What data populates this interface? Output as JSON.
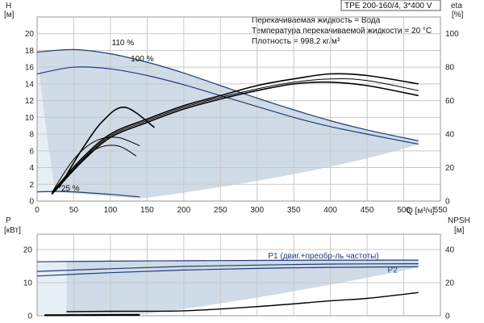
{
  "title_box": "TPE 200-160/4, 3*400 V",
  "info_lines": [
    "Перекачиваемая жидкость = Вода",
    "Температура перекачиваемой жидкости = 20 °C",
    "Плотность = 998.2 кг/м³"
  ],
  "colors": {
    "band_light": "#cfdbe6",
    "band_pale": "#e6eef6",
    "curve_blue": "#1f3d7a",
    "curve_black": "#000000",
    "grid": "#c9c9c9"
  },
  "chart_data": [
    {
      "type": "line",
      "xlabel": "Q [м³/ч]",
      "ylabel_left": "H",
      "ylabel_left_unit": "[м]",
      "ylabel_right": "eta",
      "ylabel_right_unit": "[%]",
      "xlim": [
        0,
        550
      ],
      "xticks": [
        0,
        50,
        100,
        150,
        200,
        250,
        300,
        350,
        400,
        450,
        500,
        550
      ],
      "ylim": [
        0,
        22
      ],
      "yticks": [
        0,
        2,
        4,
        6,
        8,
        10,
        12,
        14,
        16,
        18,
        20
      ],
      "ylim_right": [
        0,
        110
      ],
      "yticks_right": [
        0,
        20,
        40,
        60,
        80,
        100
      ],
      "grid": true,
      "series": [
        {
          "name": "110 %",
          "axis": "left",
          "color": "#1f3d7a",
          "x": [
            0,
            50,
            100,
            150,
            200,
            250,
            300,
            350,
            400,
            450,
            520
          ],
          "y": [
            17.8,
            18.1,
            17.6,
            16.6,
            15.3,
            13.8,
            12.3,
            10.9,
            9.6,
            8.5,
            7.2
          ]
        },
        {
          "name": "100 %",
          "axis": "left",
          "color": "#1f3d7a",
          "x": [
            0,
            50,
            100,
            150,
            200,
            250,
            300,
            350,
            400,
            450,
            520
          ],
          "y": [
            15.2,
            16.0,
            15.8,
            15.0,
            13.9,
            12.6,
            11.3,
            10.0,
            8.9,
            8.0,
            6.8
          ]
        },
        {
          "name": "25 %",
          "axis": "left",
          "color": "#1f3d7a",
          "x": [
            0,
            25,
            50,
            100,
            140
          ],
          "y": [
            1.1,
            1.15,
            1.1,
            0.8,
            0.5
          ]
        },
        {
          "name": "",
          "axis": "right",
          "color": "#000000",
          "x": [
            20,
            60,
            100,
            150,
            200,
            250,
            300,
            350,
            400,
            450,
            520
          ],
          "y": [
            5,
            25,
            40,
            49,
            57,
            63,
            69,
            73,
            76,
            75,
            70
          ]
        },
        {
          "name": "",
          "axis": "right",
          "color": "#000000",
          "x": [
            20,
            60,
            100,
            150,
            200,
            250,
            300,
            350,
            400,
            450,
            520
          ],
          "y": [
            4,
            23,
            38,
            47,
            55,
            61,
            66,
            70,
            71,
            69,
            63
          ]
        },
        {
          "name": "",
          "axis": "right",
          "color": "#000000",
          "x": [
            20,
            60,
            100,
            150,
            200,
            250,
            300,
            350,
            400,
            450,
            520
          ],
          "y": [
            4,
            24,
            39,
            48,
            56,
            62,
            67,
            71,
            73,
            72,
            66
          ]
        },
        {
          "name": "",
          "axis": "right",
          "color": "#000000",
          "x": [
            20,
            50,
            80,
            110,
            140
          ],
          "y": [
            5,
            25,
            36,
            38,
            33
          ]
        },
        {
          "name": "",
          "axis": "right",
          "color": "#000000",
          "x": [
            30,
            60,
            90,
            120,
            160
          ],
          "y": [
            8,
            30,
            48,
            56,
            44
          ]
        },
        {
          "name": "",
          "axis": "right",
          "color": "#000000",
          "x": [
            25,
            50,
            80,
            110,
            135
          ],
          "y": [
            6,
            19,
            31,
            33,
            27
          ]
        }
      ]
    },
    {
      "type": "line",
      "xlabel": "",
      "ylabel_left": "P",
      "ylabel_left_unit": "[кВт]",
      "ylabel_right": "NPSH",
      "ylabel_right_unit": "[м]",
      "xlim": [
        0,
        550
      ],
      "ylim": [
        0,
        20
      ],
      "yticks": [
        0,
        10,
        20
      ],
      "ylim_right": [
        0,
        40
      ],
      "yticks_right": [
        0,
        20,
        40
      ],
      "grid": true,
      "series": [
        {
          "name": "P1 (двиг.+преобр-ль частоты)",
          "axis": "left",
          "color": "#1f3d7a",
          "x": [
            0,
            100,
            200,
            300,
            400,
            520
          ],
          "y": [
            16.3,
            16.5,
            16.6,
            16.7,
            16.8,
            16.8
          ]
        },
        {
          "name": "P2",
          "axis": "left",
          "color": "#1f3d7a",
          "x": [
            0,
            100,
            200,
            300,
            400,
            520
          ],
          "y": [
            12.0,
            13.0,
            13.8,
            14.3,
            14.6,
            14.8
          ]
        },
        {
          "name": "",
          "axis": "left",
          "color": "#1f3d7a",
          "x": [
            0,
            100,
            200,
            300,
            400,
            520
          ],
          "y": [
            13.4,
            14.2,
            14.9,
            15.3,
            15.6,
            15.7
          ]
        },
        {
          "name": "",
          "axis": "right",
          "color": "#000000",
          "x": [
            40,
            100,
            200,
            300,
            400,
            450,
            520
          ],
          "y": [
            2.5,
            2.7,
            3.0,
            5.5,
            9.0,
            10.5,
            14.0
          ]
        },
        {
          "name": "",
          "axis": "right",
          "color": "#000000",
          "x": [
            10,
            60,
            140
          ],
          "y": [
            0.3,
            0.4,
            0.5
          ]
        }
      ]
    }
  ]
}
